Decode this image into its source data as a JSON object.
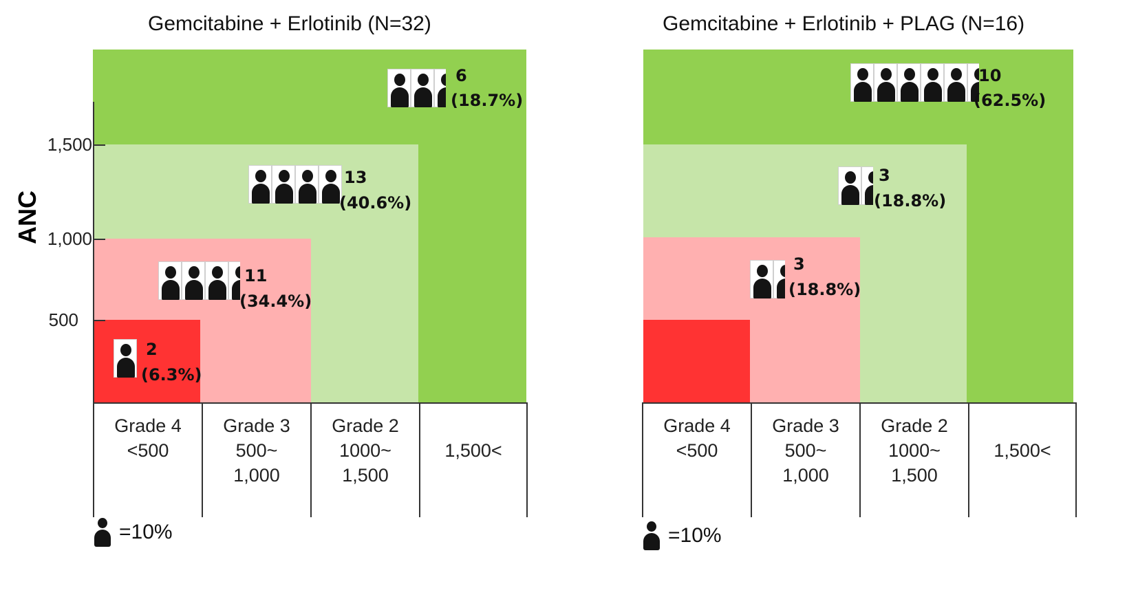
{
  "chart_data": [
    {
      "type": "nested-area",
      "title": "Gemcitabine + Erlotinib (N=32)",
      "ylabel": "ANC",
      "yticks": [
        "1,500",
        "1,000",
        "500"
      ],
      "categories": [
        {
          "grade": "Grade 4",
          "range": "<500",
          "count": "2",
          "pct": "(6.3%)",
          "icons": 1
        },
        {
          "grade": "Grade 3",
          "range": "500~\n1,000",
          "count": "11",
          "pct": "(34.4%)",
          "icons": 3.5
        },
        {
          "grade": "Grade 2",
          "range": "1000~\n1,500",
          "count": "13",
          "pct": "(40.6%)",
          "icons": 4
        },
        {
          "grade": "",
          "range": "1,500<",
          "count": "6",
          "pct": "(18.7%)",
          "icons": 2.5
        }
      ],
      "legend": "=10%"
    },
    {
      "type": "nested-area",
      "title": "Gemcitabine + Erlotinib + PLAG (N=16)",
      "categories": [
        {
          "grade": "Grade 4",
          "range": "<500",
          "count": "",
          "pct": "",
          "icons": 0
        },
        {
          "grade": "Grade 3",
          "range": "500~\n1,000",
          "count": "3",
          "pct": "(18.8%)",
          "icons": 1.5
        },
        {
          "grade": "Grade 2",
          "range": "1000~\n1,500",
          "count": "3",
          "pct": "(18.8%)",
          "icons": 1.5
        },
        {
          "grade": "",
          "range": "1,500<",
          "count": "10",
          "pct": "(62.5%)",
          "icons": 5.5
        }
      ],
      "legend": "=10%"
    }
  ],
  "colors": {
    "above_1500": "#92d050",
    "grade2": "#c6e5a9",
    "grade3": "#ffb0b0",
    "grade4": "#ff3333"
  }
}
